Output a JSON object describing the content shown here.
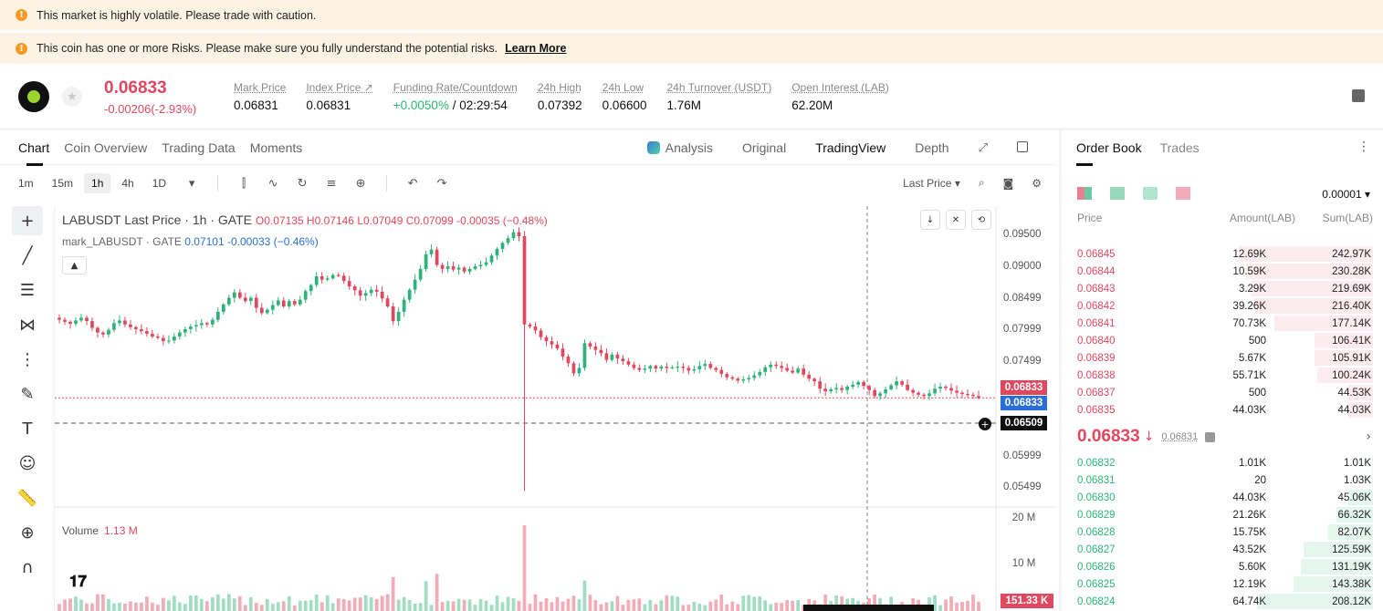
{
  "banners": [
    {
      "text": "This market is highly volatile. Please trade with caution.",
      "link": ""
    },
    {
      "text": "This coin has one or more Risks. Please make sure you fully understand the potential risks.",
      "link": "Learn More"
    }
  ],
  "header": {
    "last_price": "0.06833",
    "change": "-0.00206(-2.93%)",
    "stats": [
      {
        "label": "Mark Price",
        "value": "0.06831"
      },
      {
        "label": "Index Price ↗",
        "value": "0.06831"
      },
      {
        "label": "Funding Rate/Countdown",
        "value_green": "+0.0050%",
        "value": " / 02:29:54"
      },
      {
        "label": "24h High",
        "value": "0.07392"
      },
      {
        "label": "24h Low",
        "value": "0.06600"
      },
      {
        "label": "24h Turnover (USDT)",
        "value": "1.76M"
      },
      {
        "label": "Open Interest (LAB)",
        "value": "62.20M"
      }
    ]
  },
  "chart_tabs": {
    "left": [
      "Chart",
      "Coin Overview",
      "Trading Data",
      "Moments"
    ],
    "right": [
      "Analysis",
      "Original",
      "TradingView",
      "Depth"
    ]
  },
  "toolbar": {
    "intervals": [
      "1m",
      "15m",
      "1h",
      "4h",
      "1D"
    ],
    "selected": "1h",
    "price_source": "Last Price ▾"
  },
  "legend": {
    "main": "LABUSDT Last Price · 1h · GATE",
    "ohlc": "O0.07135 H0.07146 L0.07049 C0.07099 -0.00035 (−0.48%)",
    "mark_name": "mark_LABUSDT · GATE",
    "mark_values": "0.07101 -0.00033 (−0.46%)",
    "volume_label": "Volume",
    "volume_value": "1.13 M"
  },
  "price_axis": [
    "0.09500",
    "0.09000",
    "0.08499",
    "0.07999",
    "0.07499",
    "0.06999",
    "0.06499",
    "0.05999",
    "0.05499"
  ],
  "price_tags": {
    "last": "0.06833",
    "mark": "0.06833",
    "cursor": "0.06509"
  },
  "volume_axis": [
    "20 M",
    "10 M"
  ],
  "volume_tag": "151.33 K",
  "colors": {
    "up": "#2db37a",
    "down": "#e0485f",
    "mark": "#2a6fd6"
  },
  "chart_data": {
    "type": "candlestick",
    "interval": "1h",
    "ylim": [
      0.052,
      0.097
    ],
    "closes": [
      0.08,
      0.0797,
      0.0794,
      0.0799,
      0.0803,
      0.0798,
      0.0788,
      0.0781,
      0.0778,
      0.0785,
      0.0795,
      0.0799,
      0.0793,
      0.0789,
      0.0786,
      0.0783,
      0.0779,
      0.0775,
      0.0773,
      0.0768,
      0.0769,
      0.0775,
      0.0781,
      0.0786,
      0.079,
      0.0792,
      0.0795,
      0.0793,
      0.08,
      0.0812,
      0.0823,
      0.0833,
      0.0841,
      0.0833,
      0.0828,
      0.0833,
      0.0818,
      0.081,
      0.0815,
      0.0822,
      0.0829,
      0.082,
      0.0828,
      0.0823,
      0.083,
      0.0843,
      0.0852,
      0.0865,
      0.086,
      0.0862,
      0.0867,
      0.0866,
      0.0858,
      0.085,
      0.0844,
      0.0836,
      0.084,
      0.0845,
      0.0842,
      0.0832,
      0.082,
      0.0798,
      0.0812,
      0.083,
      0.0845,
      0.086,
      0.0876,
      0.0898,
      0.0905,
      0.0882,
      0.0876,
      0.088,
      0.0875,
      0.0878,
      0.0872,
      0.0876,
      0.088,
      0.0882,
      0.0886,
      0.0896,
      0.0906,
      0.0915,
      0.0922,
      0.0931,
      0.0925,
      0.0793,
      0.079,
      0.0784,
      0.0774,
      0.0768,
      0.0763,
      0.0757,
      0.0745,
      0.0735,
      0.072,
      0.0728,
      0.0765,
      0.076,
      0.0755,
      0.075,
      0.074,
      0.0748,
      0.0742,
      0.0738,
      0.0733,
      0.0728,
      0.0725,
      0.0727,
      0.0731,
      0.0727,
      0.073,
      0.0728,
      0.0729,
      0.073,
      0.0728,
      0.0724,
      0.0726,
      0.0731,
      0.0734,
      0.0728,
      0.0725,
      0.0719,
      0.0714,
      0.0712,
      0.0709,
      0.0711,
      0.0713,
      0.0717,
      0.0722,
      0.0729,
      0.0733,
      0.0731,
      0.0728,
      0.0724,
      0.0721,
      0.0727,
      0.0718,
      0.0712,
      0.0708,
      0.0697,
      0.0693,
      0.0696,
      0.0698,
      0.0695,
      0.07,
      0.0703,
      0.0707,
      0.0701,
      0.0695,
      0.0686,
      0.069,
      0.0696,
      0.0702,
      0.0708,
      0.0703,
      0.0695,
      0.0691,
      0.0688,
      0.0686,
      0.069,
      0.0697,
      0.07,
      0.0698,
      0.0694,
      0.0691,
      0.0689,
      0.0688,
      0.0686,
      0.0683
    ],
    "spike_low": {
      "index": 85,
      "low": 0.0544
    },
    "volume_max": 20000000,
    "volumes_note": "volume bars per candle"
  },
  "order_book": {
    "tabs": [
      "Order Book",
      "Trades"
    ],
    "precision": "0.00001 ▾",
    "headers": [
      "Price",
      "Amount(LAB)",
      "Sum(LAB)"
    ],
    "asks": [
      {
        "price": "0.06845",
        "amount": "12.69K",
        "sum": "242.97K",
        "depth": 0.98
      },
      {
        "price": "0.06844",
        "amount": "10.59K",
        "sum": "230.28K",
        "depth": 0.93
      },
      {
        "price": "0.06843",
        "amount": "3.29K",
        "sum": "219.69K",
        "depth": 0.89
      },
      {
        "price": "0.06842",
        "amount": "39.26K",
        "sum": "216.40K",
        "depth": 0.87
      },
      {
        "price": "0.06841",
        "amount": "70.73K",
        "sum": "177.14K",
        "depth": 0.72
      },
      {
        "price": "0.06840",
        "amount": "500",
        "sum": "106.41K",
        "depth": 0.43
      },
      {
        "price": "0.06839",
        "amount": "5.67K",
        "sum": "105.91K",
        "depth": 0.43
      },
      {
        "price": "0.06838",
        "amount": "55.71K",
        "sum": "100.24K",
        "depth": 0.41
      },
      {
        "price": "0.06837",
        "amount": "500",
        "sum": "44.53K",
        "depth": 0.18
      },
      {
        "price": "0.06835",
        "amount": "44.03K",
        "sum": "44.03K",
        "depth": 0.18
      }
    ],
    "mid": {
      "price": "0.06833",
      "mark": "0.06831"
    },
    "bids": [
      {
        "price": "0.06832",
        "amount": "1.01K",
        "sum": "1.01K",
        "depth": 0.005
      },
      {
        "price": "0.06831",
        "amount": "20",
        "sum": "1.03K",
        "depth": 0.005
      },
      {
        "price": "0.06830",
        "amount": "44.03K",
        "sum": "45.06K",
        "depth": 0.18
      },
      {
        "price": "0.06829",
        "amount": "21.26K",
        "sum": "66.32K",
        "depth": 0.27
      },
      {
        "price": "0.06828",
        "amount": "15.75K",
        "sum": "82.07K",
        "depth": 0.33
      },
      {
        "price": "0.06827",
        "amount": "43.52K",
        "sum": "125.59K",
        "depth": 0.51
      },
      {
        "price": "0.06826",
        "amount": "5.60K",
        "sum": "131.19K",
        "depth": 0.53
      },
      {
        "price": "0.06825",
        "amount": "12.19K",
        "sum": "143.38K",
        "depth": 0.58
      },
      {
        "price": "0.06824",
        "amount": "64.74K",
        "sum": "208.12K",
        "depth": 0.85
      }
    ]
  }
}
